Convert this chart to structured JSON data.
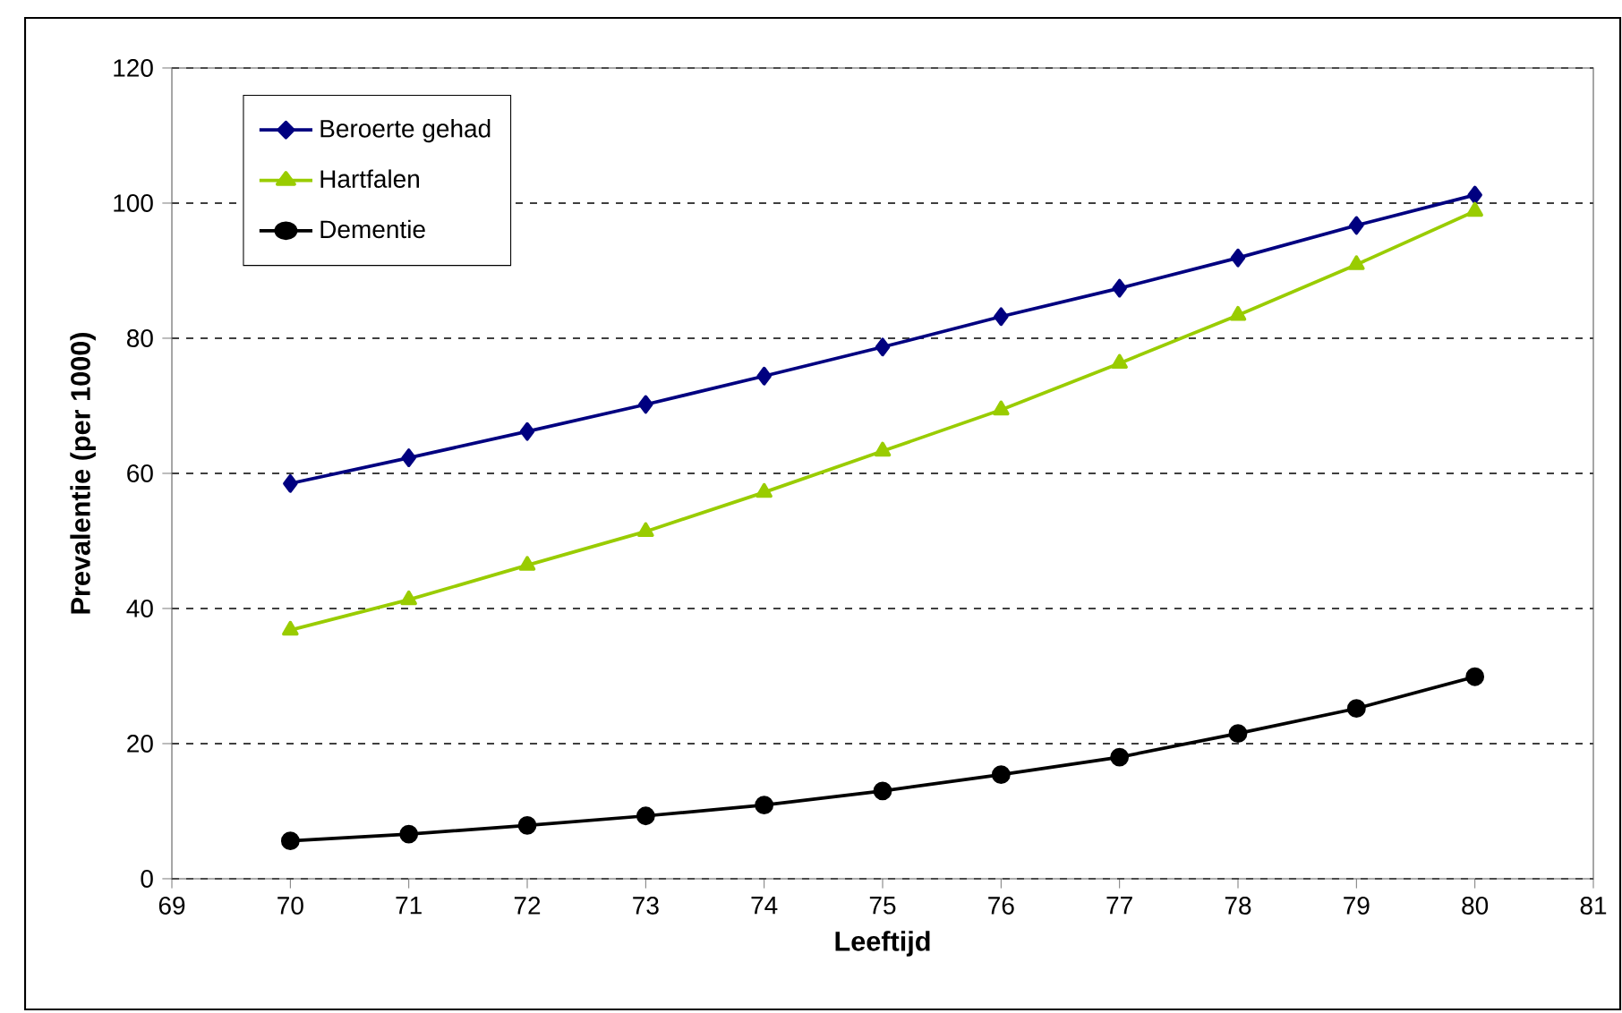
{
  "chart_data": {
    "type": "line",
    "xlabel": "Leeftijd",
    "ylabel": "Prevalentie (per 1000)",
    "x": [
      70,
      71,
      72,
      73,
      74,
      75,
      76,
      77,
      78,
      79,
      80
    ],
    "series": [
      {
        "name": "Beroerte gehad",
        "color": "#000080",
        "marker": "diamond",
        "values": [
          58.5,
          62.3,
          66.2,
          70.2,
          74.4,
          78.7,
          83.2,
          87.4,
          91.9,
          96.7,
          101.2
        ]
      },
      {
        "name": "Hartfalen",
        "color": "#99cc00",
        "marker": "triangle",
        "values": [
          36.8,
          41.3,
          46.4,
          51.4,
          57.2,
          63.3,
          69.4,
          76.3,
          83.4,
          90.9,
          98.8
        ]
      },
      {
        "name": "Dementie",
        "color": "#000000",
        "marker": "circle",
        "values": [
          5.6,
          6.6,
          7.9,
          9.3,
          10.9,
          13.0,
          15.4,
          18.0,
          21.5,
          25.2,
          29.9
        ]
      }
    ],
    "xlim": [
      69,
      81
    ],
    "xticks": [
      69,
      70,
      71,
      72,
      73,
      74,
      75,
      76,
      77,
      78,
      79,
      80,
      81
    ],
    "ylim": [
      0,
      120
    ],
    "yticks": [
      0,
      20,
      40,
      60,
      80,
      100,
      120
    ],
    "grid": "y",
    "legend": "top left",
    "line_style": "solid"
  }
}
